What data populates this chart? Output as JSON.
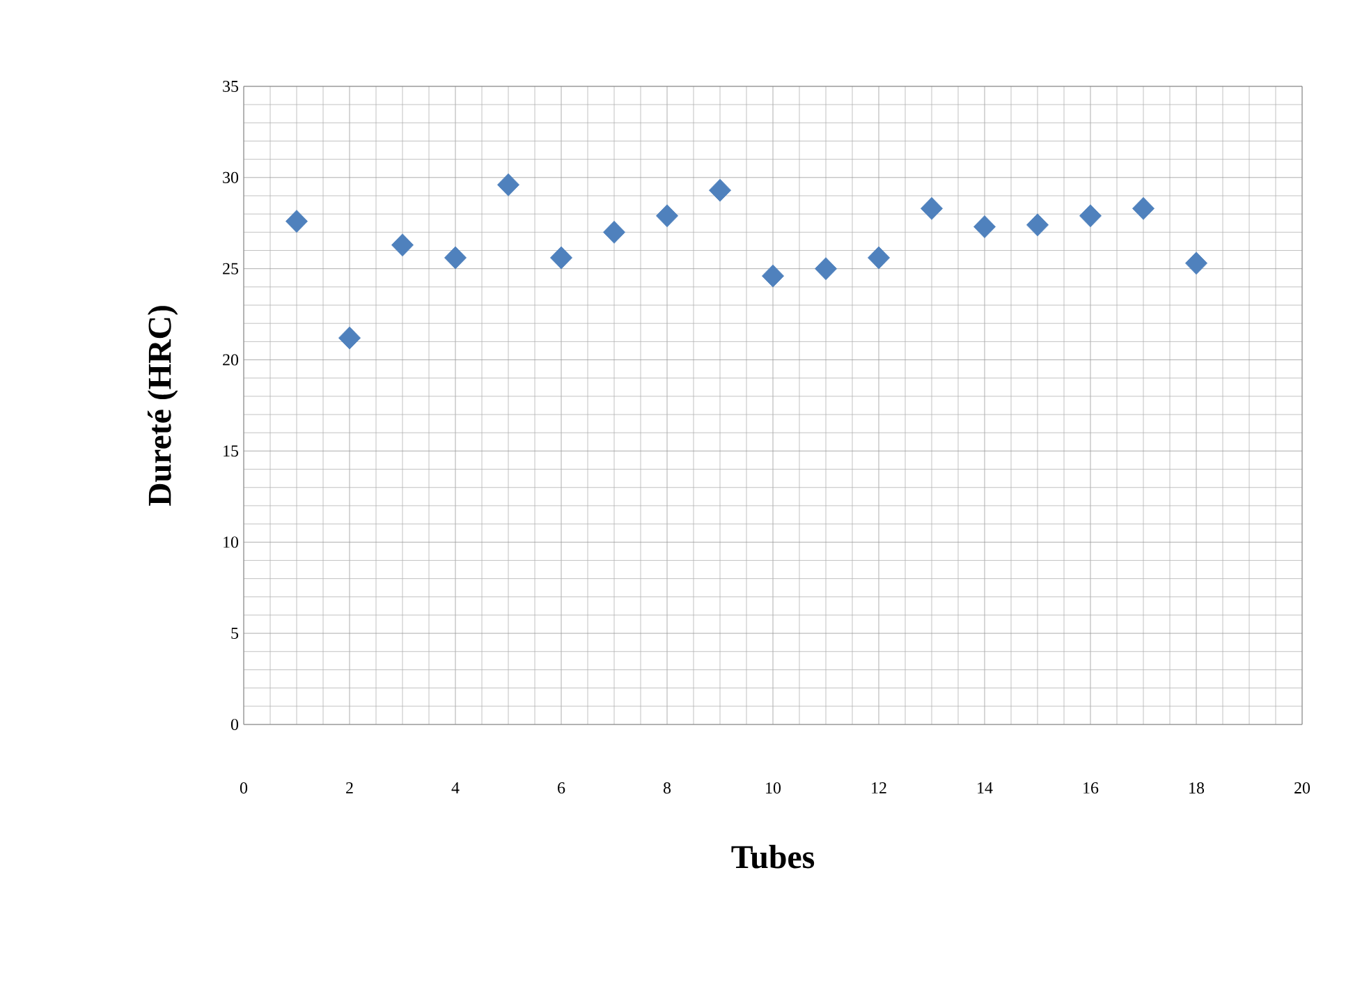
{
  "chart_data": {
    "type": "scatter",
    "xlabel": "Tubes",
    "ylabel": "Dureté  (HRC)",
    "x": [
      1,
      2,
      3,
      4,
      5,
      6,
      7,
      8,
      9,
      10,
      11,
      12,
      13,
      14,
      15,
      16,
      17,
      18
    ],
    "series": [
      {
        "color": "#4f81bd",
        "values": [
          27.6,
          21.2,
          26.3,
          25.6,
          29.6,
          25.6,
          27.0,
          27.9,
          29.3,
          24.6,
          25.0,
          25.6,
          28.3,
          27.3,
          27.4,
          27.9,
          28.3,
          25.3
        ]
      }
    ],
    "xlim": [
      0,
      20
    ],
    "ylim": [
      0,
      35
    ],
    "xticks": [
      0,
      2,
      4,
      6,
      8,
      10,
      12,
      14,
      16,
      18,
      20
    ],
    "yticks": [
      0,
      5,
      10,
      15,
      20,
      25,
      30,
      35
    ],
    "grid": true,
    "marker": "diamond"
  }
}
